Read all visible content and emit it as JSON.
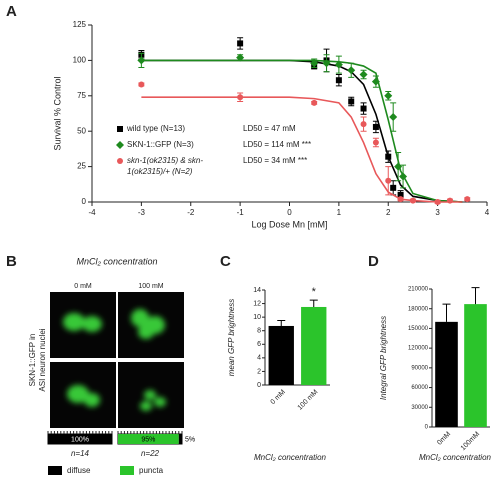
{
  "panel_labels": [
    "A",
    "B",
    "C",
    "D"
  ],
  "chart_data": [
    {
      "type": "dose-response",
      "xlabel": "Log Dose Mn [mM]",
      "ylabel": "Survival % Control",
      "xlim": [
        -4,
        4
      ],
      "xticks": [
        -4,
        -3,
        -2,
        -1,
        0,
        1,
        2,
        3,
        4
      ],
      "ylim": [
        0,
        125
      ],
      "yticks": [
        0,
        25,
        50,
        75,
        100,
        125
      ],
      "curve_x": [
        -3,
        -2,
        -1,
        0,
        0.5,
        1,
        1.25,
        1.5,
        1.75,
        2,
        2.25,
        2.5,
        3,
        3.5
      ],
      "series": [
        {
          "name": "wild type (N=13)",
          "color": "#000000",
          "marker": "square",
          "ld50": "LD50 = 47 mM",
          "x": [
            -3,
            -1,
            0.5,
            0.75,
            1,
            1.25,
            1.5,
            1.75,
            2,
            2.1,
            2.25
          ],
          "values": [
            104,
            112,
            96,
            100,
            86,
            71,
            66,
            53,
            32,
            10,
            5
          ],
          "errors": [
            3,
            4,
            2,
            8,
            4,
            3,
            4,
            4,
            4,
            5,
            3
          ],
          "curve": [
            100,
            100,
            100,
            100,
            99,
            96,
            92,
            83,
            62,
            32,
            12,
            4,
            1,
            0
          ]
        },
        {
          "name": "SKN-1::GFP (N=3)",
          "color": "#1e8a1e",
          "marker": "diamond",
          "ld50": "LD50 = 114 mM ***",
          "x": [
            -3,
            -1,
            0.5,
            0.75,
            1,
            1.25,
            1.5,
            1.75,
            2,
            2.1,
            2.2,
            2.3
          ],
          "values": [
            100,
            102,
            98,
            98,
            97,
            93,
            90,
            85,
            75,
            60,
            25,
            18
          ],
          "errors": [
            5,
            2,
            3,
            6,
            6,
            5,
            3,
            4,
            3,
            10,
            10,
            8
          ],
          "curve": [
            100,
            100,
            100,
            100,
            100,
            99,
            98,
            96,
            91,
            58,
            22,
            6,
            1,
            0
          ]
        },
        {
          "name": "skn-1(ok2315) & skn-1(ok2315)/+ (N=2)",
          "color": "#e8585a",
          "marker": "circle",
          "ld50": "LD50 = 34 mM ***",
          "x": [
            -3,
            -1,
            0.5,
            1.5,
            1.75,
            2,
            2.25,
            2.5,
            3,
            3.25,
            3.6
          ],
          "values": [
            83,
            74,
            70,
            55,
            42,
            15,
            2,
            1,
            0,
            1,
            2
          ],
          "errors": [
            1,
            3,
            1,
            5,
            3,
            10,
            1,
            1,
            1,
            1,
            1
          ],
          "curve": [
            74,
            74,
            74,
            74,
            73,
            70,
            60,
            42,
            20,
            7,
            2,
            1,
            0,
            0
          ]
        }
      ]
    },
    {
      "type": "stacked-hbar",
      "title": "MnCl₂ concentration",
      "column_labels": [
        "0 mM",
        "100 mM"
      ],
      "side_label": [
        "SKN-1::GFP in",
        "ASI neuron nuclei"
      ],
      "categories": [
        "n=14",
        "n=22"
      ],
      "xlim": [
        0,
        100
      ],
      "series": [
        {
          "name": "diffuse",
          "color": "#000000",
          "values": [
            100,
            5
          ],
          "value_labels": [
            "100%",
            "5%"
          ]
        },
        {
          "name": "puncta",
          "color": "#2bc42b",
          "values": [
            0,
            95
          ],
          "value_labels": [
            null,
            "95%"
          ]
        }
      ]
    },
    {
      "type": "bar",
      "ylabel": "mean GFP brightness",
      "xlabel": "MnCl₂ concentration",
      "categories": [
        "0 mM",
        "100 mM"
      ],
      "values": [
        8.7,
        11.5
      ],
      "errors": [
        0.8,
        1.0
      ],
      "colors": [
        "#000000",
        "#2bc42b"
      ],
      "significance": [
        null,
        "*"
      ],
      "ylim": [
        0,
        14
      ],
      "yticks": [
        0,
        2,
        4,
        6,
        8,
        10,
        12,
        14
      ]
    },
    {
      "type": "bar",
      "ylabel": "Integral GFP brightness",
      "xlabel": "MnCl₂ concentration",
      "categories": [
        "0mM",
        "100mM"
      ],
      "values": [
        160000,
        187000
      ],
      "errors": [
        27000,
        25000
      ],
      "colors": [
        "#000000",
        "#2bc42b"
      ],
      "significance": [
        null,
        null
      ],
      "ylim": [
        0,
        210000
      ],
      "yticks": [
        0,
        30000,
        60000,
        90000,
        120000,
        150000,
        180000,
        210000
      ]
    }
  ]
}
